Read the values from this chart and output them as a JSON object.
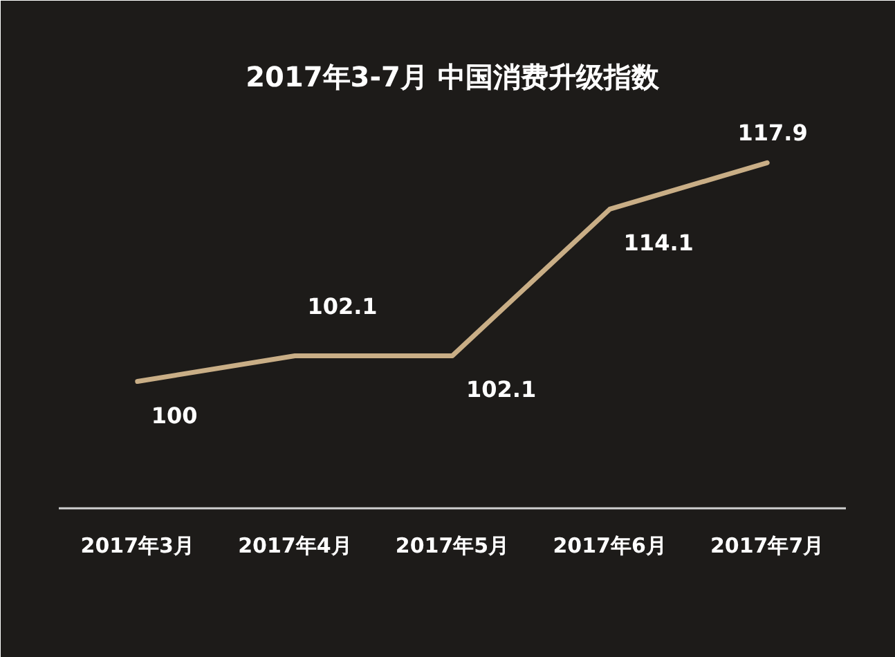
{
  "chart_data": {
    "type": "line",
    "title": "2017年3-7月 中国消费升级指数",
    "categories": [
      "2017年3月",
      "2017年4月",
      "2017年5月",
      "2017年6月",
      "2017年7月"
    ],
    "series": [
      {
        "color": "#c9ae86",
        "values": [
          100,
          102.1,
          102.1,
          114.1,
          117.9
        ]
      }
    ],
    "data_labels": true,
    "grid": false,
    "marker": "none",
    "line_style": "solid"
  }
}
